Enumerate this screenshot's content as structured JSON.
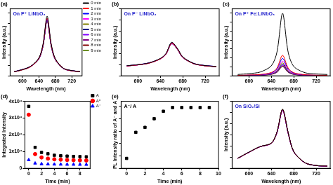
{
  "chart_data": [
    {
      "type": "line",
      "title": "(a)",
      "annotations": [
        "On P⁺ LiNbO₃"
      ],
      "xlabel": "Wavelength (nm)",
      "ylabel": "Intensity (a.u.)",
      "x": [
        580,
        600,
        620,
        640,
        650,
        660,
        670,
        680,
        700,
        720,
        740
      ],
      "xlim": [
        570,
        745
      ],
      "xticks": [
        600,
        640,
        680,
        720
      ],
      "ylim": [
        0,
        320
      ],
      "tick_labels": "x",
      "grid": false,
      "legend": "upper right",
      "series": [
        {
          "name": "0 min",
          "color": "#000000",
          "values": [
            20,
            30,
            46,
            86,
            152,
            285,
            152,
            82,
            36,
            25,
            20
          ]
        },
        {
          "name": "1 min",
          "color": "#ff0000",
          "values": [
            19,
            29,
            44,
            83,
            147,
            275,
            147,
            79,
            35,
            24,
            19
          ]
        },
        {
          "name": "2 min",
          "color": "#0000ff",
          "values": [
            20,
            30,
            45,
            82,
            145,
            270,
            145,
            78,
            34,
            25,
            20
          ]
        },
        {
          "name": "3 min",
          "color": "#ff00ff",
          "values": [
            19,
            30,
            44,
            83,
            146,
            272,
            146,
            79,
            35,
            24,
            19
          ]
        },
        {
          "name": "4 min",
          "color": "#808000",
          "values": [
            20,
            29,
            45,
            82,
            144,
            268,
            144,
            77,
            34,
            25,
            20
          ]
        },
        {
          "name": "5 min",
          "color": "#000080",
          "values": [
            19,
            29,
            44,
            81,
            142,
            265,
            142,
            77,
            34,
            24,
            19
          ]
        },
        {
          "name": "6 min",
          "color": "#8000ff",
          "values": [
            20,
            30,
            45,
            82,
            145,
            270,
            145,
            78,
            35,
            25,
            20
          ]
        },
        {
          "name": "7 min",
          "color": "#800080",
          "values": [
            19,
            29,
            44,
            80,
            141,
            262,
            141,
            76,
            34,
            24,
            19
          ]
        },
        {
          "name": "8 min",
          "color": "#800000",
          "values": [
            20,
            30,
            45,
            82,
            144,
            268,
            144,
            77,
            34,
            25,
            20
          ]
        },
        {
          "name": "9 min",
          "color": "#6b8e23",
          "values": [
            20,
            29,
            44,
            81,
            142,
            265,
            142,
            77,
            34,
            24,
            19
          ]
        }
      ]
    },
    {
      "type": "line",
      "title": "(b)",
      "annotations": [
        "On P⁻ LiNbO₃"
      ],
      "xlabel": "Wavelength (nm)",
      "ylabel": "Intensity (a.u.)",
      "x": [
        580,
        600,
        620,
        640,
        650,
        660,
        670,
        680,
        700,
        720,
        740
      ],
      "xlim": [
        570,
        745
      ],
      "xticks": [
        600,
        640,
        680,
        720
      ],
      "ylim": [
        0,
        300
      ],
      "tick_labels": "x",
      "grid": false,
      "series": [
        {
          "color": "#000000",
          "values": [
            45,
            50,
            58,
            78,
            100,
            150,
            125,
            85,
            55,
            46,
            42
          ]
        },
        {
          "color": "#ff0000",
          "values": [
            44,
            49,
            57,
            76,
            98,
            146,
            122,
            83,
            54,
            45,
            41
          ]
        },
        {
          "color": "#0000ff",
          "values": [
            45,
            50,
            58,
            77,
            99,
            148,
            123,
            84,
            55,
            46,
            42
          ]
        },
        {
          "color": "#ff00ff",
          "values": [
            44,
            49,
            57,
            76,
            97,
            145,
            121,
            83,
            54,
            45,
            41
          ]
        },
        {
          "color": "#808000",
          "values": [
            45,
            50,
            57,
            77,
            98,
            147,
            122,
            84,
            55,
            45,
            42
          ]
        },
        {
          "color": "#000080",
          "values": [
            44,
            49,
            57,
            76,
            97,
            144,
            120,
            82,
            54,
            45,
            41
          ]
        },
        {
          "color": "#8000ff",
          "values": [
            45,
            50,
            58,
            77,
            98,
            146,
            122,
            83,
            55,
            46,
            42
          ]
        },
        {
          "color": "#800080",
          "values": [
            44,
            49,
            57,
            76,
            97,
            143,
            120,
            82,
            54,
            45,
            41
          ]
        },
        {
          "color": "#800000",
          "values": [
            45,
            49,
            58,
            77,
            98,
            145,
            121,
            83,
            55,
            45,
            42
          ]
        },
        {
          "color": "#6b8e23",
          "values": [
            44,
            49,
            57,
            76,
            97,
            144,
            120,
            82,
            54,
            45,
            41
          ]
        }
      ]
    },
    {
      "type": "line",
      "title": "(c)",
      "annotations": [
        "On P⁺ Fe:LiNbO₃"
      ],
      "xlabel": "Wavelength (nm)",
      "ylabel": "Intensity (a.u.)",
      "x": [
        580,
        600,
        620,
        640,
        650,
        660,
        670,
        680,
        700,
        720,
        740
      ],
      "xlim": [
        570,
        745
      ],
      "xticks": [
        600,
        640,
        680,
        720
      ],
      "ylim": [
        0,
        1500
      ],
      "tick_labels": "x",
      "grid": false,
      "series": [
        {
          "color": "#000000",
          "values": [
            30,
            50,
            85,
            225,
            530,
            1400,
            530,
            210,
            70,
            42,
            30
          ]
        },
        {
          "color": "#ff0000",
          "values": [
            12,
            18,
            30,
            75,
            175,
            460,
            175,
            70,
            25,
            15,
            12
          ]
        },
        {
          "color": "#0000ff",
          "values": [
            10,
            15,
            25,
            63,
            150,
            390,
            150,
            60,
            22,
            13,
            10
          ]
        },
        {
          "color": "#ff00ff",
          "values": [
            9,
            13,
            21,
            54,
            126,
            330,
            126,
            50,
            18,
            11,
            9
          ]
        },
        {
          "color": "#808000",
          "values": [
            8,
            12,
            19,
            47,
            110,
            290,
            110,
            44,
            16,
            10,
            8
          ]
        },
        {
          "color": "#000080",
          "values": [
            7,
            11,
            17,
            42,
            99,
            260,
            99,
            40,
            14,
            9,
            7
          ]
        },
        {
          "color": "#8000ff",
          "values": [
            7,
            10,
            16,
            39,
            92,
            240,
            92,
            37,
            13,
            8,
            7
          ]
        },
        {
          "color": "#800080",
          "values": [
            6,
            9,
            15,
            36,
            86,
            225,
            86,
            34,
            12,
            8,
            6
          ]
        },
        {
          "color": "#800000",
          "values": [
            6,
            9,
            14,
            35,
            82,
            215,
            82,
            33,
            12,
            7,
            6
          ]
        },
        {
          "color": "#6b8e23",
          "values": [
            6,
            9,
            14,
            33,
            78,
            205,
            78,
            31,
            11,
            7,
            6
          ]
        }
      ]
    },
    {
      "type": "scatter",
      "title": "(d)",
      "xlabel": "Time (min)",
      "ylabel": "Integrated Intensity",
      "x": [
        0,
        1,
        2,
        3,
        4,
        5,
        6,
        7,
        8,
        9
      ],
      "xlim": [
        -0.6,
        9.6
      ],
      "xticks": [
        0,
        2,
        4,
        6,
        8
      ],
      "ylim": [
        0,
        40000
      ],
      "yticks": [
        0,
        {
          "value": 10000,
          "label": "1x10⁴"
        },
        {
          "value": 20000,
          "label": "2x10⁴"
        },
        {
          "value": 30000,
          "label": "3x10⁴"
        },
        {
          "value": 40000,
          "label": "4x10⁴"
        }
      ],
      "grid": false,
      "legend": "upper right",
      "series": [
        {
          "name": "A",
          "color": "#000000",
          "marker": "square",
          "values": [
            37000,
            12500,
            9500,
            8700,
            7800,
            7500,
            7300,
            7100,
            7000,
            6900
          ]
        },
        {
          "name": "A⁰",
          "color": "#ff0000",
          "marker": "circle",
          "values": [
            32000,
            8500,
            6500,
            5800,
            5400,
            5200,
            5000,
            4900,
            4800,
            4700
          ]
        },
        {
          "name": "A⁻",
          "color": "#0000ff",
          "marker": "triangle",
          "values": [
            5000,
            3000,
            2600,
            2500,
            2400,
            2350,
            2300,
            2300,
            2250,
            2250
          ]
        }
      ]
    },
    {
      "type": "scatter",
      "title": "(e)",
      "annotations": [
        "A⁻/ A"
      ],
      "xlabel": "Time (min)",
      "ylabel": "PL Intensity ratio of A⁻ and A",
      "x": [
        0,
        1,
        2,
        3,
        4,
        5,
        6,
        7,
        8,
        9
      ],
      "xlim": [
        -0.6,
        10
      ],
      "xticks": [
        0,
        2,
        4,
        6,
        8,
        10
      ],
      "ylim": [
        0.1,
        0.37
      ],
      "tick_labels": "x",
      "grid": false,
      "series": [
        {
          "color": "#000000",
          "marker": "square",
          "values": [
            0.14,
            0.245,
            0.265,
            0.3,
            0.33,
            0.345,
            0.345,
            0.345,
            0.345,
            0.345
          ]
        }
      ]
    },
    {
      "type": "line",
      "title": "(f)",
      "annotations": [
        "On SiO₂/Si"
      ],
      "xlabel": "Wavelength (nm)",
      "ylabel": "Intensity (a.u.)",
      "x": [
        580,
        600,
        620,
        640,
        650,
        660,
        670,
        680,
        700,
        720,
        740
      ],
      "xlim": [
        570,
        745
      ],
      "xticks": [
        600,
        640,
        680,
        720
      ],
      "ylim": [
        0,
        1200
      ],
      "tick_labels": "x",
      "grid": false,
      "series": [
        {
          "color": "#000000",
          "values": [
            180,
            290,
            390,
            450,
            650,
            1060,
            640,
            300,
            100,
            50,
            40
          ]
        },
        {
          "color": "#ff0000",
          "values": [
            178,
            288,
            388,
            448,
            645,
            1050,
            635,
            298,
            99,
            50,
            40
          ]
        },
        {
          "color": "#0000ff",
          "values": [
            179,
            289,
            389,
            447,
            643,
            1045,
            633,
            297,
            99,
            49,
            40
          ]
        },
        {
          "color": "#ff00ff",
          "values": [
            177,
            287,
            387,
            446,
            640,
            1040,
            630,
            296,
            98,
            49,
            39
          ]
        },
        {
          "color": "#808000",
          "values": [
            180,
            290,
            390,
            450,
            648,
            1055,
            638,
            299,
            100,
            50,
            40
          ]
        },
        {
          "color": "#000080",
          "values": [
            178,
            288,
            388,
            448,
            644,
            1048,
            634,
            298,
            99,
            50,
            40
          ]
        },
        {
          "color": "#8000ff",
          "values": [
            177,
            287,
            387,
            446,
            641,
            1042,
            631,
            296,
            98,
            49,
            39
          ]
        },
        {
          "color": "#800080",
          "values": [
            176,
            286,
            386,
            445,
            639,
            1038,
            629,
            295,
            98,
            49,
            39
          ]
        },
        {
          "color": "#800000",
          "values": [
            179,
            289,
            389,
            448,
            645,
            1050,
            635,
            298,
            99,
            50,
            40
          ]
        },
        {
          "color": "#6b8e23",
          "values": [
            178,
            288,
            388,
            447,
            643,
            1045,
            633,
            297,
            99,
            49,
            40
          ]
        }
      ]
    }
  ]
}
